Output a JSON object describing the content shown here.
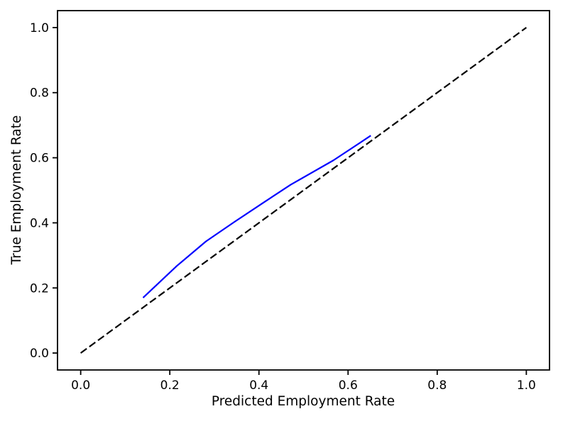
{
  "figure": {
    "background_color": "#ffffff",
    "spine_color": "#000000",
    "tick_color": "#000000",
    "text_color": "#000000"
  },
  "chart_data": {
    "type": "line",
    "title": "",
    "xlabel": "Predicted Employment Rate",
    "ylabel": "True Employment Rate",
    "xlim": [
      -0.052,
      1.052
    ],
    "ylim": [
      -0.052,
      1.052
    ],
    "xtick_labels": [
      "0.0",
      "0.2",
      "0.4",
      "0.6",
      "0.8",
      "1.0"
    ],
    "ytick_labels": [
      "0.0",
      "0.2",
      "0.4",
      "0.6",
      "0.8",
      "1.0"
    ],
    "grid": false,
    "legend": null,
    "series": [
      {
        "id": "perfect-calibration-reference",
        "style": "dashed",
        "color": "#000000",
        "linewidth": 2.2,
        "x": [
          0.0,
          1.0
        ],
        "y": [
          0.0,
          1.0
        ]
      },
      {
        "id": "calibration-curve",
        "style": "solid",
        "color": "#0000ff",
        "linewidth": 2.2,
        "x": [
          0.14,
          0.216,
          0.281,
          0.344,
          0.41,
          0.471,
          0.567,
          0.651
        ],
        "y": [
          0.17,
          0.268,
          0.343,
          0.402,
          0.462,
          0.517,
          0.592,
          0.668
        ]
      }
    ]
  }
}
